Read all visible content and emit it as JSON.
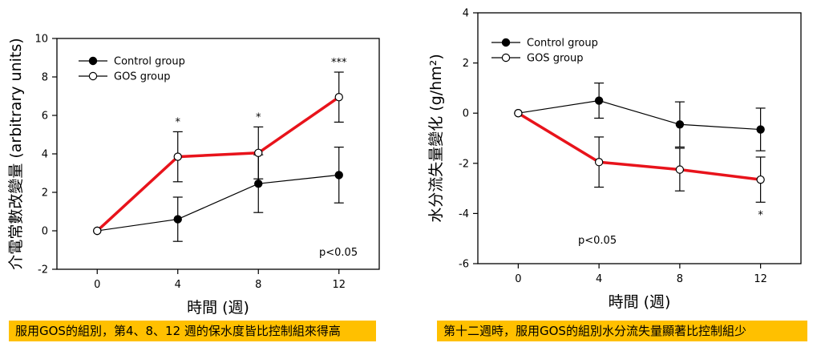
{
  "chart_data": [
    {
      "type": "line",
      "ylabel": "介電常數改變量 (arbitrary units)",
      "xlabel": "時間 (週)",
      "x": [
        0,
        4,
        8,
        12
      ],
      "xticks": [
        "0",
        "4",
        "8",
        "12"
      ],
      "yticks": [
        "-2",
        "0",
        "2",
        "4",
        "6",
        "8",
        "10"
      ],
      "ylim": [
        -2,
        10
      ],
      "xlim": [
        -2,
        14
      ],
      "legend": "top-left",
      "series": [
        {
          "name": "Control group",
          "marker": "filled",
          "color": "#000000",
          "values": [
            0,
            0.6,
            2.45,
            2.9
          ],
          "err": [
            0,
            1.15,
            1.5,
            1.45
          ]
        },
        {
          "name": "GOS group",
          "marker": "open",
          "color": "#e8131b",
          "values": [
            0,
            3.85,
            4.05,
            6.95
          ],
          "err": [
            0,
            1.3,
            1.35,
            1.3
          ]
        }
      ],
      "significance": [
        {
          "x": 4,
          "label": "*"
        },
        {
          "x": 8,
          "label": "*"
        },
        {
          "x": 12,
          "label": "***"
        }
      ],
      "pvalue": "p<0.05",
      "caption": "服用GOS的組別，第4、8、12 週的保水度皆比控制組來得高"
    },
    {
      "type": "line",
      "ylabel": "水分流失量變化 (g/hm²)",
      "xlabel": "時間 (週)",
      "x": [
        0,
        4,
        8,
        12
      ],
      "xticks": [
        "0",
        "4",
        "8",
        "12"
      ],
      "yticks": [
        "-6",
        "-4",
        "-2",
        "0",
        "2",
        "4"
      ],
      "ylim": [
        -6,
        4
      ],
      "xlim": [
        -2,
        14
      ],
      "legend": "top-left",
      "series": [
        {
          "name": "Control group",
          "marker": "filled",
          "color": "#000000",
          "values": [
            0,
            0.5,
            -0.45,
            -0.65
          ],
          "err": [
            0,
            0.7,
            0.9,
            0.85
          ]
        },
        {
          "name": "GOS group",
          "marker": "open",
          "color": "#e8131b",
          "values": [
            0,
            -1.95,
            -2.25,
            -2.65
          ],
          "err": [
            0,
            1.0,
            0.85,
            0.9
          ]
        }
      ],
      "significance": [
        {
          "x": 12,
          "label": "*"
        }
      ],
      "pvalue": "p<0.05",
      "caption": "第十二週時，服用GOS的組別水分流失量顯著比控制組少"
    }
  ]
}
